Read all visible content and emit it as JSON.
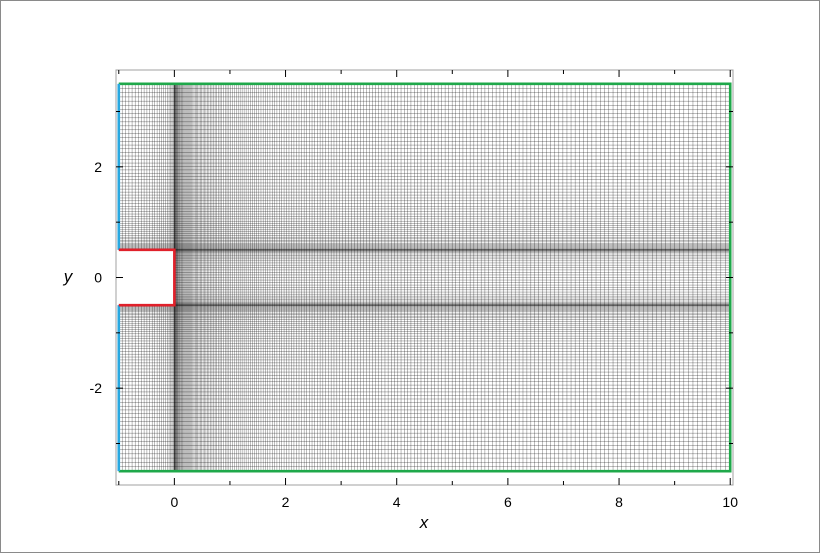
{
  "chart_data": {
    "type": "mesh",
    "xlabel": "x",
    "ylabel": "y",
    "xlim": [
      -1.05,
      10.05
    ],
    "ylim": [
      -3.75,
      3.75
    ],
    "x_ticks": [
      0,
      2,
      4,
      6,
      8,
      10
    ],
    "x_tick_labels": [
      "0",
      "2",
      "4",
      "6",
      "8",
      "10"
    ],
    "y_ticks": [
      2,
      0,
      -2
    ],
    "y_tick_labels": [
      "2",
      "0",
      "-2"
    ],
    "domain": {
      "x_min": -1,
      "x_max": 10,
      "y_min": -3.5,
      "y_max": 3.5
    },
    "obstacle": {
      "x_min": -1,
      "x_max": 0,
      "y_min": -0.5,
      "y_max": 0.5
    },
    "boundaries": [
      {
        "type": "inlet",
        "color": "#29a8e0"
      },
      {
        "type": "wall",
        "color": "#e0202a"
      },
      {
        "type": "far-field",
        "color": "#1fa84a"
      }
    ],
    "grid_color": "#000000"
  }
}
